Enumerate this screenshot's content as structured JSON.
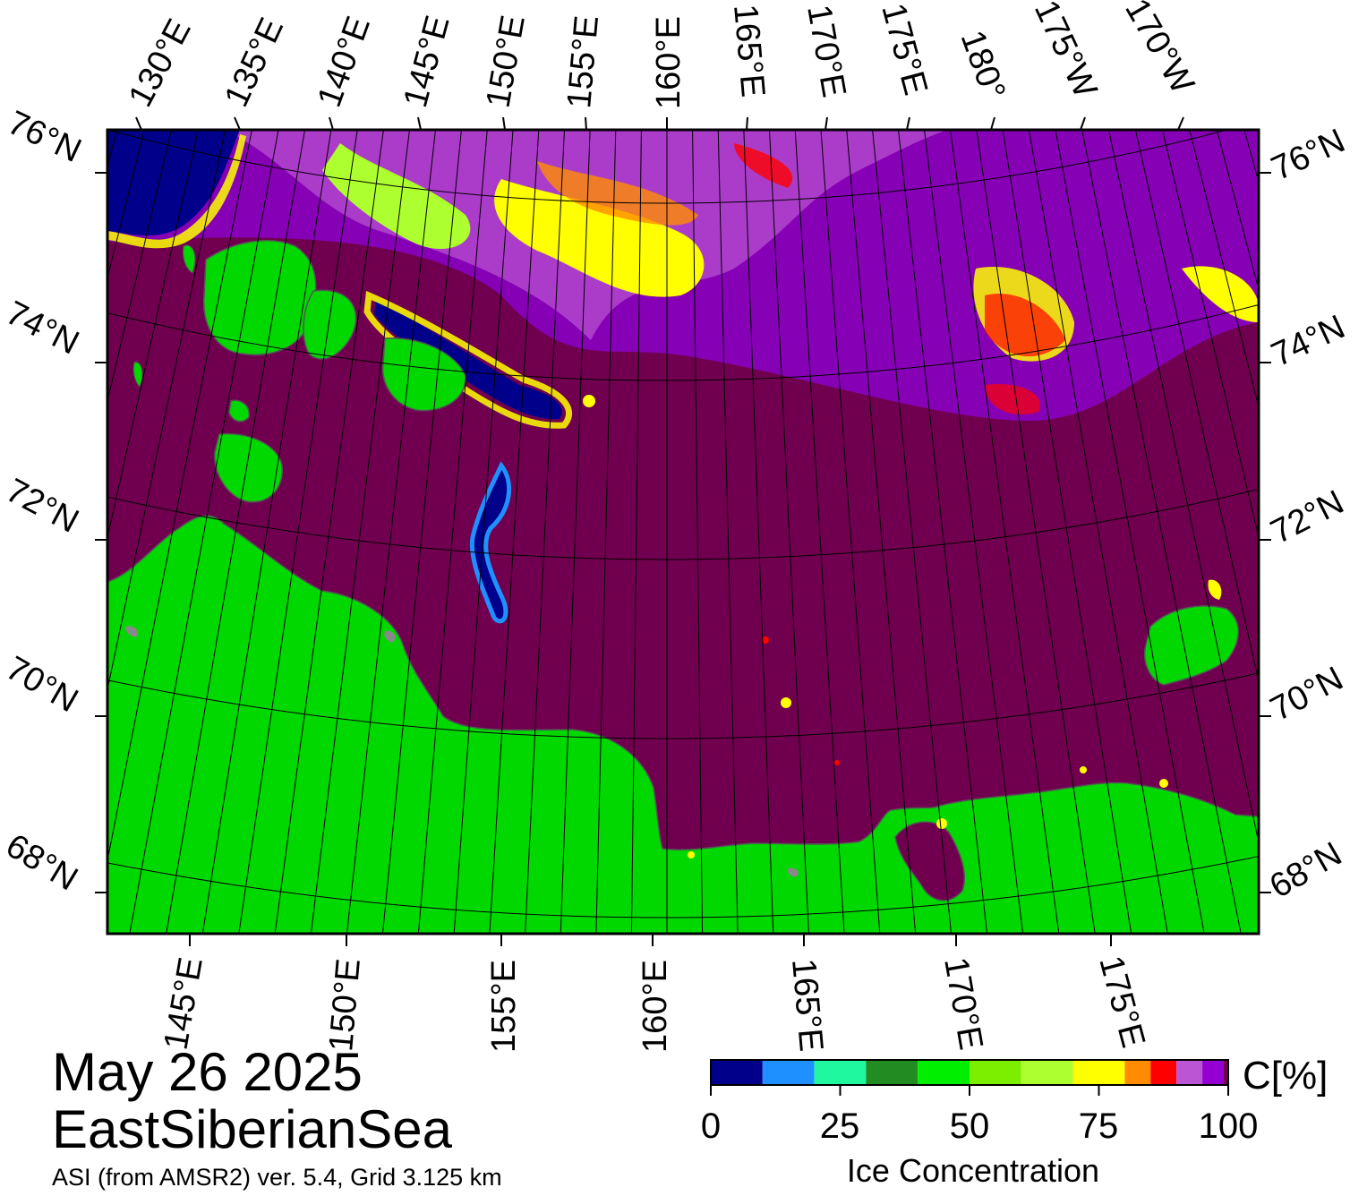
{
  "map": {
    "top_longitude_labels": [
      "130°E",
      "135°E",
      "140°E",
      "145°E",
      "150°E",
      "155°E",
      "160°E",
      "165°E",
      "170°E",
      "175°E",
      "180°",
      "175°W",
      "170°W"
    ],
    "bottom_longitude_labels": [
      "145°E",
      "150°E",
      "155°E",
      "160°E",
      "165°E",
      "170°E",
      "175°E"
    ],
    "left_latitude_labels": [
      "76°N",
      "74°N",
      "72°N",
      "70°N",
      "68°N"
    ],
    "right_latitude_labels": [
      "76°N",
      "74°N",
      "72°N",
      "70°N",
      "68°N"
    ],
    "colors": {
      "ocean_full_ice": "#70004f",
      "land": "#00d800",
      "land_gray": "#888888",
      "open_water": "#00007f",
      "frame": "#000000"
    }
  },
  "caption": {
    "date": "May 26 2025",
    "region": "EastSiberianSea",
    "source": "ASI (from AMSR2) ver. 5.4,  Grid 3.125 km"
  },
  "colorbar": {
    "unit": "C[%]",
    "title": "Ice Concentration",
    "tick_labels": [
      "0",
      "25",
      "50",
      "75",
      "100"
    ],
    "tick_values": [
      0,
      25,
      50,
      75,
      100
    ],
    "range": [
      0,
      100
    ],
    "bins": [
      {
        "from": 0,
        "to": 10,
        "color": "#00008b"
      },
      {
        "from": 10,
        "to": 20,
        "color": "#1e90ff"
      },
      {
        "from": 20,
        "to": 30,
        "color": "#20f8a0"
      },
      {
        "from": 30,
        "to": 40,
        "color": "#228b22"
      },
      {
        "from": 40,
        "to": 50,
        "color": "#00ee00"
      },
      {
        "from": 50,
        "to": 60,
        "color": "#7cee00"
      },
      {
        "from": 60,
        "to": 70,
        "color": "#adff2f"
      },
      {
        "from": 70,
        "to": 80,
        "color": "#ffff00"
      },
      {
        "from": 80,
        "to": 85,
        "color": "#ff8c00"
      },
      {
        "from": 85,
        "to": 90,
        "color": "#ff0000"
      },
      {
        "from": 90,
        "to": 95,
        "color": "#ba55d3"
      },
      {
        "from": 95,
        "to": 99,
        "color": "#9400d3"
      },
      {
        "from": 99,
        "to": 100,
        "color": "#70004f"
      }
    ]
  }
}
